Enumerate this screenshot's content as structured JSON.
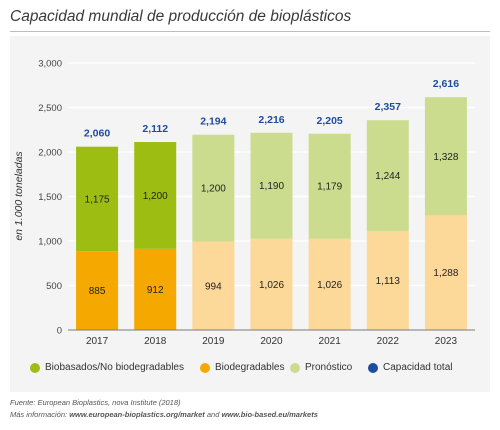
{
  "title": "Capacidad mundial de producción de bioplásticos",
  "colors": {
    "biobased": "#9ebd13",
    "biodegradable": "#f5a800",
    "forecast_biobased": "#cbdc8f",
    "forecast_biodegradable": "#fcd899",
    "total_label": "#1e4d9b",
    "frame_bg": "#f4f4f4",
    "grid": "#ffffff",
    "axis": "#7a7a7a"
  },
  "chart_data": {
    "type": "bar",
    "stacked": true,
    "ylabel": "en 1.000 toneladas",
    "ylim": [
      0,
      3000
    ],
    "y_ticks": [
      0,
      500,
      1000,
      1500,
      2000,
      2500,
      3000
    ],
    "y_tick_labels": [
      "0",
      "500",
      "1,000",
      "1,500",
      "2,000",
      "2,500",
      "3,000"
    ],
    "grid": true,
    "legend_position": "bottom",
    "categories": [
      "2017",
      "2018",
      "2019",
      "2020",
      "2021",
      "2022",
      "2023"
    ],
    "forecast": [
      false,
      false,
      true,
      true,
      true,
      true,
      true
    ],
    "series": [
      {
        "name": "Biodegradables",
        "values": [
          885,
          912,
          994,
          1026,
          1026,
          1113,
          1288
        ],
        "labels": [
          "885",
          "912",
          "994",
          "1,026",
          "1,026",
          "1,113",
          "1,288"
        ]
      },
      {
        "name": "Biobasados/No biodegradables",
        "values": [
          1175,
          1200,
          1200,
          1190,
          1179,
          1244,
          1328
        ],
        "labels": [
          "1,175",
          "1,200",
          "1,200",
          "1,190",
          "1,179",
          "1,244",
          "1,328"
        ]
      }
    ],
    "totals": {
      "name": "Capacidad total",
      "values": [
        2060,
        2112,
        2194,
        2216,
        2205,
        2357,
        2616
      ],
      "labels": [
        "2,060",
        "2,112",
        "2,194",
        "2,216",
        "2,205",
        "2,357",
        "2,616"
      ]
    }
  },
  "legend": [
    {
      "label": "Biobasados/No biodegradables",
      "color": "#9ebd13"
    },
    {
      "label": "Biodegradables",
      "color": "#f5a800"
    },
    {
      "label": "Pronóstico",
      "color": "#cbdc8f"
    },
    {
      "label": "Capacidad total",
      "color": "#1e4d9b"
    }
  ],
  "footer": {
    "source": "Fuente: European Bioplastics, nova Institute (2018)",
    "more_info_prefix": "Más información: ",
    "link1": "www.european-bioplastics.org/market",
    "and_text": " and ",
    "link2": "www.bio-based.eu/markets"
  }
}
